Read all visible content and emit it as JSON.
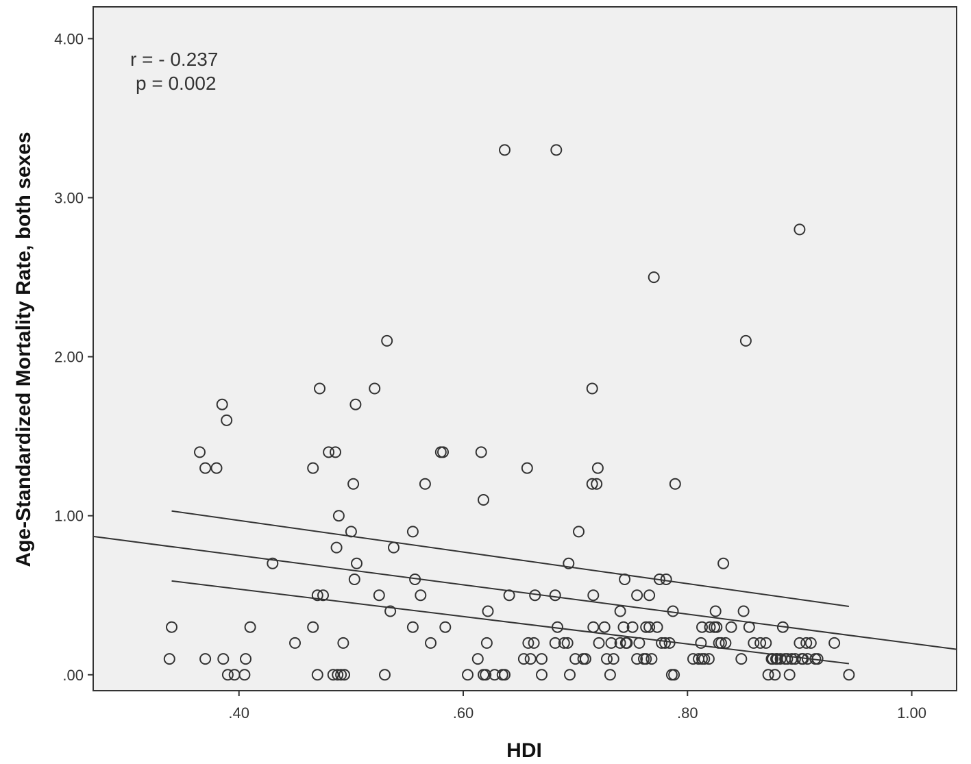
{
  "chart_data": {
    "type": "scatter",
    "xlabel": "HDI",
    "ylabel": "Age-Standardized Mortality Rate, both sexes",
    "xlim": [
      0.27,
      1.04
    ],
    "ylim": [
      -0.1,
      4.2
    ],
    "x_ticks": [
      0.4,
      0.6,
      0.8,
      1.0
    ],
    "x_tick_labels": [
      ".40",
      ".60",
      ".80",
      "1.00"
    ],
    "y_ticks": [
      0,
      1,
      2,
      3,
      4
    ],
    "y_tick_labels": [
      ".00",
      "1.00",
      "2.00",
      "3.00",
      "4.00"
    ],
    "annotations": [
      "r = - 0.237",
      "p = 0.002"
    ],
    "grid": false,
    "colors": {
      "plot_bg": "#f0f0f0",
      "marker": "#333333",
      "line": "#333333"
    },
    "points": [
      [
        0.34,
        0.3
      ],
      [
        0.338,
        0.1
      ],
      [
        0.37,
        0.1
      ],
      [
        0.386,
        0.1
      ],
      [
        0.39,
        0.0
      ],
      [
        0.396,
        0.0
      ],
      [
        0.405,
        0.0
      ],
      [
        0.406,
        0.1
      ],
      [
        0.41,
        0.3
      ],
      [
        0.365,
        1.4
      ],
      [
        0.37,
        1.3
      ],
      [
        0.38,
        1.3
      ],
      [
        0.385,
        1.7
      ],
      [
        0.389,
        1.6
      ],
      [
        0.43,
        0.7
      ],
      [
        0.45,
        0.2
      ],
      [
        0.466,
        1.3
      ],
      [
        0.466,
        0.3
      ],
      [
        0.47,
        0.0
      ],
      [
        0.47,
        0.5
      ],
      [
        0.472,
        1.8
      ],
      [
        0.475,
        0.5
      ],
      [
        0.48,
        1.4
      ],
      [
        0.484,
        0.0
      ],
      [
        0.486,
        1.4
      ],
      [
        0.487,
        0.8
      ],
      [
        0.488,
        0.0
      ],
      [
        0.489,
        1.0
      ],
      [
        0.491,
        0.0
      ],
      [
        0.493,
        0.2
      ],
      [
        0.494,
        0.0
      ],
      [
        0.5,
        0.9
      ],
      [
        0.502,
        1.2
      ],
      [
        0.503,
        0.6
      ],
      [
        0.504,
        1.7
      ],
      [
        0.505,
        0.7
      ],
      [
        0.521,
        1.8
      ],
      [
        0.525,
        0.5
      ],
      [
        0.53,
        0.0
      ],
      [
        0.532,
        2.1
      ],
      [
        0.535,
        0.4
      ],
      [
        0.538,
        0.8
      ],
      [
        0.555,
        0.9
      ],
      [
        0.555,
        0.3
      ],
      [
        0.557,
        0.6
      ],
      [
        0.562,
        0.5
      ],
      [
        0.566,
        1.2
      ],
      [
        0.571,
        0.2
      ],
      [
        0.58,
        1.4
      ],
      [
        0.582,
        1.4
      ],
      [
        0.584,
        0.3
      ],
      [
        0.604,
        0.0
      ],
      [
        0.613,
        0.1
      ],
      [
        0.616,
        1.4
      ],
      [
        0.618,
        1.1
      ],
      [
        0.618,
        0.0
      ],
      [
        0.62,
        0.0
      ],
      [
        0.621,
        0.2
      ],
      [
        0.622,
        0.4
      ],
      [
        0.628,
        0.0
      ],
      [
        0.635,
        0.0
      ],
      [
        0.637,
        3.3
      ],
      [
        0.637,
        0.0
      ],
      [
        0.641,
        0.5
      ],
      [
        0.654,
        0.1
      ],
      [
        0.657,
        1.3
      ],
      [
        0.658,
        0.2
      ],
      [
        0.66,
        0.1
      ],
      [
        0.663,
        0.2
      ],
      [
        0.664,
        0.5
      ],
      [
        0.67,
        0.1
      ],
      [
        0.67,
        0.0
      ],
      [
        0.682,
        0.5
      ],
      [
        0.682,
        0.2
      ],
      [
        0.683,
        3.3
      ],
      [
        0.684,
        0.3
      ],
      [
        0.69,
        0.2
      ],
      [
        0.693,
        0.2
      ],
      [
        0.694,
        0.7
      ],
      [
        0.695,
        0.0
      ],
      [
        0.7,
        0.1
      ],
      [
        0.703,
        0.9
      ],
      [
        0.707,
        0.1
      ],
      [
        0.709,
        0.1
      ],
      [
        0.715,
        1.8
      ],
      [
        0.715,
        1.2
      ],
      [
        0.716,
        0.5
      ],
      [
        0.716,
        0.3
      ],
      [
        0.719,
        1.2
      ],
      [
        0.72,
        1.3
      ],
      [
        0.721,
        0.2
      ],
      [
        0.726,
        0.3
      ],
      [
        0.728,
        0.1
      ],
      [
        0.731,
        0.0
      ],
      [
        0.732,
        0.2
      ],
      [
        0.734,
        0.1
      ],
      [
        0.74,
        0.2
      ],
      [
        0.74,
        0.4
      ],
      [
        0.743,
        0.3
      ],
      [
        0.744,
        0.6
      ],
      [
        0.745,
        0.2
      ],
      [
        0.746,
        0.2
      ],
      [
        0.751,
        0.3
      ],
      [
        0.755,
        0.1
      ],
      [
        0.755,
        0.5
      ],
      [
        0.757,
        0.2
      ],
      [
        0.761,
        0.1
      ],
      [
        0.763,
        0.3
      ],
      [
        0.763,
        0.1
      ],
      [
        0.766,
        0.5
      ],
      [
        0.766,
        0.3
      ],
      [
        0.768,
        0.1
      ],
      [
        0.77,
        2.5
      ],
      [
        0.773,
        0.3
      ],
      [
        0.775,
        0.6
      ],
      [
        0.777,
        0.2
      ],
      [
        0.78,
        0.2
      ],
      [
        0.781,
        0.6
      ],
      [
        0.784,
        0.2
      ],
      [
        0.786,
        0.0
      ],
      [
        0.787,
        0.4
      ],
      [
        0.788,
        0.0
      ],
      [
        0.789,
        1.2
      ],
      [
        0.805,
        0.1
      ],
      [
        0.81,
        0.1
      ],
      [
        0.812,
        0.2
      ],
      [
        0.813,
        0.1
      ],
      [
        0.813,
        0.3
      ],
      [
        0.815,
        0.1
      ],
      [
        0.819,
        0.1
      ],
      [
        0.82,
        0.3
      ],
      [
        0.824,
        0.3
      ],
      [
        0.825,
        0.4
      ],
      [
        0.826,
        0.3
      ],
      [
        0.828,
        0.2
      ],
      [
        0.83,
        0.2
      ],
      [
        0.832,
        0.7
      ],
      [
        0.834,
        0.2
      ],
      [
        0.839,
        0.3
      ],
      [
        0.848,
        0.1
      ],
      [
        0.85,
        0.4
      ],
      [
        0.852,
        2.1
      ],
      [
        0.855,
        0.3
      ],
      [
        0.859,
        0.2
      ],
      [
        0.865,
        0.2
      ],
      [
        0.87,
        0.2
      ],
      [
        0.872,
        0.0
      ],
      [
        0.875,
        0.1
      ],
      [
        0.876,
        0.1
      ],
      [
        0.878,
        0.0
      ],
      [
        0.879,
        0.1
      ],
      [
        0.88,
        0.1
      ],
      [
        0.883,
        0.1
      ],
      [
        0.885,
        0.3
      ],
      [
        0.887,
        0.1
      ],
      [
        0.889,
        0.1
      ],
      [
        0.891,
        0.0
      ],
      [
        0.893,
        0.1
      ],
      [
        0.896,
        0.1
      ],
      [
        0.9,
        2.8
      ],
      [
        0.9,
        0.2
      ],
      [
        0.902,
        0.1
      ],
      [
        0.903,
        0.1
      ],
      [
        0.906,
        0.2
      ],
      [
        0.907,
        0.1
      ],
      [
        0.91,
        0.2
      ],
      [
        0.914,
        0.1
      ],
      [
        0.916,
        0.1
      ],
      [
        0.931,
        0.2
      ],
      [
        0.944,
        0.0
      ]
    ],
    "fit_lines": [
      {
        "x": [
          0.27,
          1.04
        ],
        "y": [
          0.87,
          0.16
        ]
      },
      {
        "x": [
          0.34,
          0.944
        ],
        "y": [
          1.03,
          0.43
        ]
      },
      {
        "x": [
          0.34,
          0.944
        ],
        "y": [
          0.59,
          0.07
        ]
      }
    ]
  }
}
